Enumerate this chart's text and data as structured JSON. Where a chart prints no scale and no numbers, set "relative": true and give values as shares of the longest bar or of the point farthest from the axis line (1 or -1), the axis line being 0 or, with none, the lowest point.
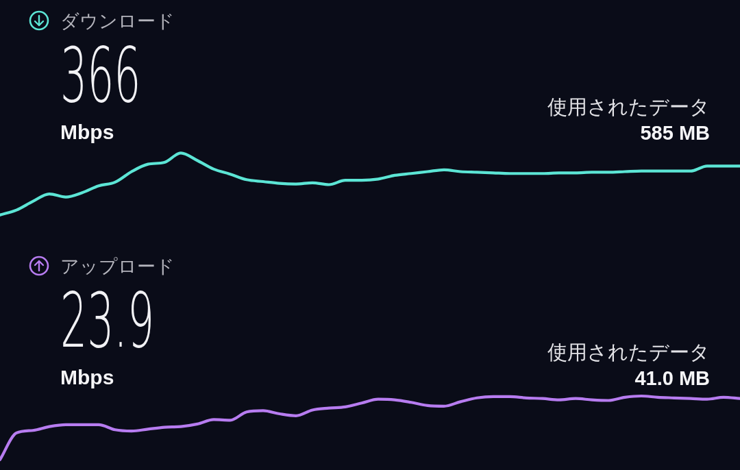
{
  "chart_data": [
    {
      "type": "line",
      "relative": true,
      "title": "ダウンロード",
      "categories": [
        null,
        null,
        null,
        null,
        null,
        null,
        null,
        null,
        null,
        null,
        null,
        null,
        null,
        null,
        null,
        null,
        null,
        null,
        null,
        null,
        null,
        null,
        null,
        null,
        null,
        null,
        null,
        null,
        null,
        null,
        null,
        null,
        null,
        null,
        null,
        null,
        null,
        null,
        null,
        null,
        null,
        null,
        null,
        null,
        null,
        null
      ],
      "series": [
        {
          "color": "#5ce5d5",
          "values": [
            0,
            0.08,
            0.22,
            0.34,
            0.29,
            0.36,
            0.47,
            0.53,
            0.7,
            0.82,
            0.85,
            1,
            0.88,
            0.74,
            0.66,
            0.57,
            0.54,
            0.51,
            0.5,
            0.52,
            0.49,
            0.56,
            0.56,
            0.58,
            0.64,
            0.67,
            0.7,
            0.73,
            0.7,
            0.69,
            0.68,
            0.67,
            0.67,
            0.67,
            0.68,
            0.68,
            0.69,
            0.69,
            0.7,
            0.71,
            0.71,
            0.71,
            0.71,
            0.79,
            0.79,
            0.79
          ]
        }
      ],
      "annotations": [
        "366",
        "Mbps",
        "使用されたデータ",
        "585 MB"
      ]
    },
    {
      "type": "line",
      "relative": true,
      "title": "アップロード",
      "categories": [
        null,
        null,
        null,
        null,
        null,
        null,
        null,
        null,
        null,
        null,
        null,
        null,
        null,
        null,
        null,
        null,
        null,
        null,
        null,
        null,
        null,
        null,
        null,
        null,
        null,
        null,
        null,
        null,
        null,
        null,
        null,
        null,
        null,
        null,
        null,
        null,
        null,
        null,
        null,
        null,
        null,
        null,
        null,
        null,
        null,
        null
      ],
      "series": [
        {
          "color": "#b77cf0",
          "values": [
            0,
            0.42,
            0.46,
            0.52,
            0.55,
            0.55,
            0.55,
            0.47,
            0.45,
            0.48,
            0.51,
            0.52,
            0.56,
            0.63,
            0.62,
            0.75,
            0.77,
            0.72,
            0.69,
            0.78,
            0.81,
            0.83,
            0.89,
            0.95,
            0.94,
            0.9,
            0.85,
            0.84,
            0.91,
            0.97,
            0.99,
            0.99,
            0.97,
            0.96,
            0.94,
            0.96,
            0.94,
            0.93,
            0.98,
            1,
            0.98,
            0.97,
            0.96,
            0.95,
            0.98,
            0.96
          ]
        }
      ],
      "annotations": [
        "23.9",
        "Mbps",
        "使用されたデータ",
        "41.0 MB"
      ]
    }
  ]
}
